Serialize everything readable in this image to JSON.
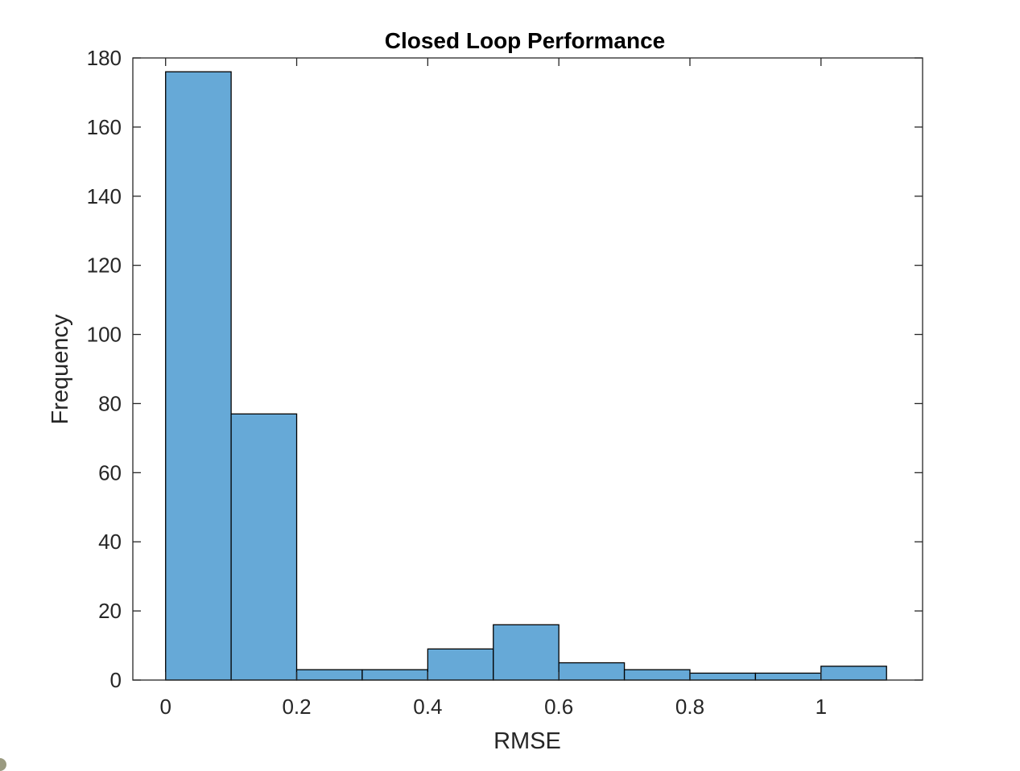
{
  "chart_data": {
    "type": "bar",
    "title": "Closed Loop Performance",
    "xlabel": "RMSE",
    "ylabel": "Frequency",
    "xlim": [
      -0.05,
      1.155
    ],
    "ylim": [
      0,
      180
    ],
    "xticks": [
      0,
      0.2,
      0.4,
      0.6,
      0.8,
      1
    ],
    "xtick_labels": [
      "0",
      "0.2",
      "0.4",
      "0.6",
      "0.8",
      "1"
    ],
    "yticks": [
      0,
      20,
      40,
      60,
      80,
      100,
      120,
      140,
      160,
      180
    ],
    "ytick_labels": [
      "0",
      "20",
      "40",
      "60",
      "80",
      "100",
      "120",
      "140",
      "160",
      "180"
    ],
    "bin_edges": [
      0,
      0.1,
      0.2,
      0.3,
      0.4,
      0.5,
      0.6,
      0.7,
      0.8,
      0.9,
      1.0,
      1.1
    ],
    "values": [
      176,
      77,
      3,
      3,
      9,
      16,
      5,
      3,
      2,
      2,
      4
    ],
    "bar_color": "#66a9d7",
    "edge_color": "#000000",
    "grid": false,
    "legend": "none"
  }
}
